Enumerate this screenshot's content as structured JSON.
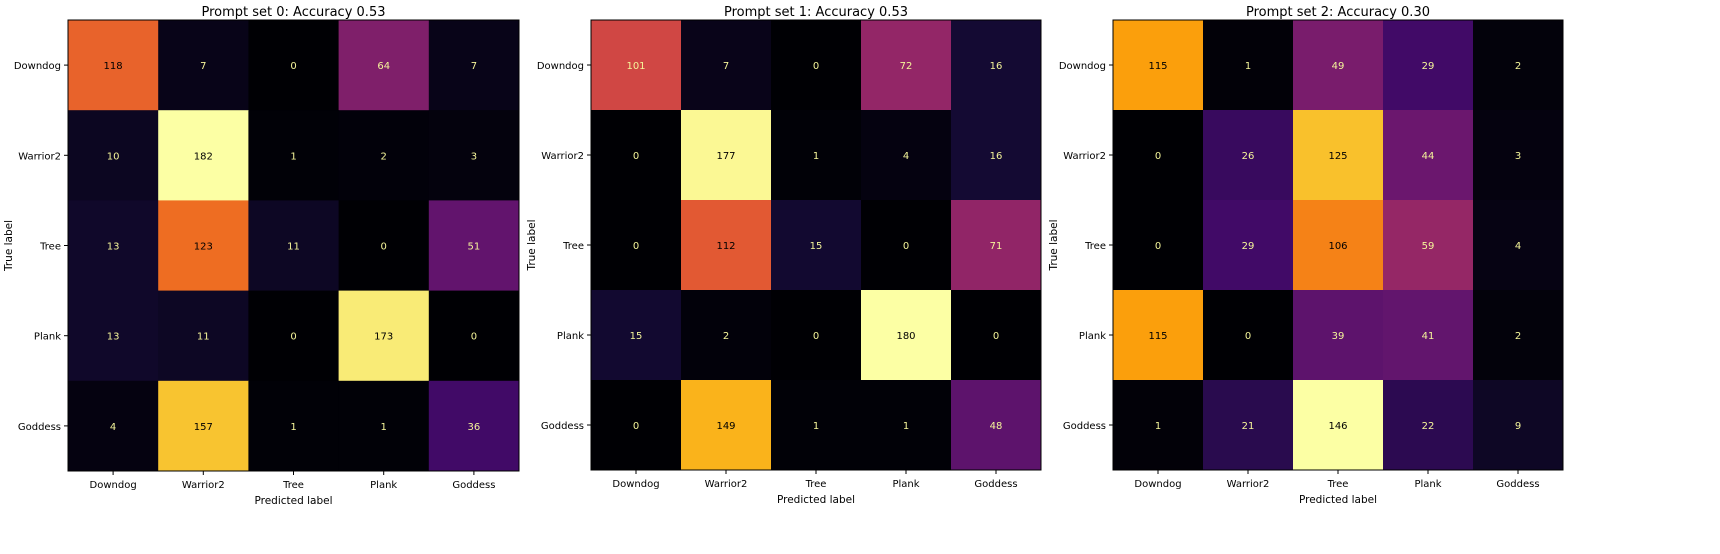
{
  "figure": {
    "background": "#ffffff",
    "colormap": "inferno",
    "grid": false,
    "legend": "none"
  },
  "chart_data": [
    {
      "type": "heatmap",
      "title": "Prompt set 0: Accuracy 0.53",
      "xlabel": "Predicted label",
      "ylabel": "True label",
      "x_categories": [
        "Downdog",
        "Warrior2",
        "Tree",
        "Plank",
        "Goddess"
      ],
      "y_categories": [
        "Downdog",
        "Warrior2",
        "Tree",
        "Plank",
        "Goddess"
      ],
      "values": [
        [
          118,
          7,
          0,
          64,
          7
        ],
        [
          10,
          182,
          1,
          2,
          3
        ],
        [
          13,
          123,
          11,
          0,
          51
        ],
        [
          13,
          11,
          0,
          173,
          0
        ],
        [
          4,
          157,
          1,
          1,
          36
        ]
      ],
      "vmin": 0,
      "vmax": 182
    },
    {
      "type": "heatmap",
      "title": "Prompt set 1: Accuracy 0.53",
      "xlabel": "Predicted label",
      "ylabel": "True label",
      "x_categories": [
        "Downdog",
        "Warrior2",
        "Tree",
        "Plank",
        "Goddess"
      ],
      "y_categories": [
        "Downdog",
        "Warrior2",
        "Tree",
        "Plank",
        "Goddess"
      ],
      "values": [
        [
          101,
          7,
          0,
          72,
          16
        ],
        [
          0,
          177,
          1,
          4,
          16
        ],
        [
          0,
          112,
          15,
          0,
          71
        ],
        [
          15,
          2,
          0,
          180,
          0
        ],
        [
          0,
          149,
          1,
          1,
          48
        ]
      ],
      "vmin": 0,
      "vmax": 180
    },
    {
      "type": "heatmap",
      "title": "Prompt set 2: Accuracy 0.30",
      "xlabel": "Predicted label",
      "ylabel": "True label",
      "x_categories": [
        "Downdog",
        "Warrior2",
        "Tree",
        "Plank",
        "Goddess"
      ],
      "y_categories": [
        "Downdog",
        "Warrior2",
        "Tree",
        "Plank",
        "Goddess"
      ],
      "values": [
        [
          115,
          1,
          49,
          29,
          2
        ],
        [
          0,
          26,
          125,
          44,
          3
        ],
        [
          0,
          29,
          106,
          59,
          4
        ],
        [
          115,
          0,
          39,
          41,
          2
        ],
        [
          1,
          21,
          146,
          22,
          9
        ]
      ],
      "vmin": 0,
      "vmax": 146
    }
  ]
}
